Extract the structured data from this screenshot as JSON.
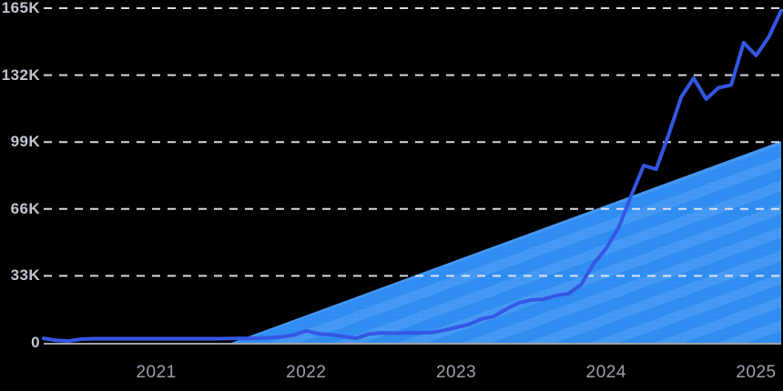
{
  "chart_data": {
    "type": "line",
    "title": "",
    "legend": "none",
    "grid": "dashed-horizontal",
    "ylim": [
      0,
      165000
    ],
    "x": [
      "2020-04",
      "2020-05",
      "2020-06",
      "2020-07",
      "2020-08",
      "2020-09",
      "2020-10",
      "2020-11",
      "2020-12",
      "2021-01",
      "2021-02",
      "2021-03",
      "2021-04",
      "2021-05",
      "2021-06",
      "2021-07",
      "2021-08",
      "2021-09",
      "2021-10",
      "2021-11",
      "2021-12",
      "2022-01",
      "2022-02",
      "2022-03",
      "2022-04",
      "2022-05",
      "2022-06",
      "2022-07",
      "2022-08",
      "2022-09",
      "2022-10",
      "2022-11",
      "2022-12",
      "2023-01",
      "2023-02",
      "2023-03",
      "2023-04",
      "2023-05",
      "2023-06",
      "2023-07",
      "2023-08",
      "2023-09",
      "2023-10",
      "2023-11",
      "2023-12",
      "2024-01",
      "2024-02",
      "2024-03",
      "2024-04",
      "2024-05",
      "2024-06",
      "2024-07",
      "2024-08",
      "2024-09",
      "2024-10",
      "2024-11",
      "2024-12",
      "2025-01",
      "2025-02",
      "2025-03"
    ],
    "series": [
      {
        "color": "#3456e4",
        "values": [
          2200,
          1200,
          900,
          1800,
          2000,
          2000,
          2000,
          2000,
          2000,
          2000,
          2000,
          2000,
          2000,
          2000,
          2000,
          2100,
          2200,
          2200,
          2500,
          2900,
          3800,
          5900,
          4500,
          4000,
          3100,
          2200,
          4300,
          4900,
          4800,
          4900,
          4900,
          5000,
          6100,
          7600,
          9000,
          11700,
          13000,
          16600,
          19700,
          21100,
          21500,
          23300,
          24300,
          28700,
          39000,
          46600,
          56900,
          72600,
          87400,
          85600,
          102700,
          121100,
          130500,
          120200,
          125800,
          127100,
          148000,
          141700,
          150700,
          163800
        ]
      }
    ],
    "trend_area": {
      "style": "diagonal-hatch-triangle",
      "color": "#2f8cf2",
      "start_x": "2021-07",
      "start_value": 0,
      "end_x": "2025-03",
      "end_value": 99500
    },
    "y_ticks": [
      {
        "value": 0,
        "label": "0"
      },
      {
        "value": 33000,
        "label": "33K"
      },
      {
        "value": 66000,
        "label": "66K"
      },
      {
        "value": 99000,
        "label": "99K"
      },
      {
        "value": 132000,
        "label": "132K"
      },
      {
        "value": 165000,
        "label": "165K"
      }
    ],
    "x_ticks": [
      {
        "month": "2021-01",
        "label": "2021"
      },
      {
        "month": "2022-01",
        "label": "2022"
      },
      {
        "month": "2023-01",
        "label": "2023"
      },
      {
        "month": "2024-01",
        "label": "2024"
      },
      {
        "month": "2025-01",
        "label": "2025"
      }
    ],
    "colors": {
      "background": "#000000",
      "line": "#3456e4",
      "trend_fill": "#2f8cf2",
      "trend_stripe": "rgba(255,255,255,0.10)",
      "gridline": "#e9ebf2",
      "axis_baseline": "#d6d9e2",
      "y_label": "#c3c6d1",
      "x_label": "#9aa0ab"
    }
  }
}
